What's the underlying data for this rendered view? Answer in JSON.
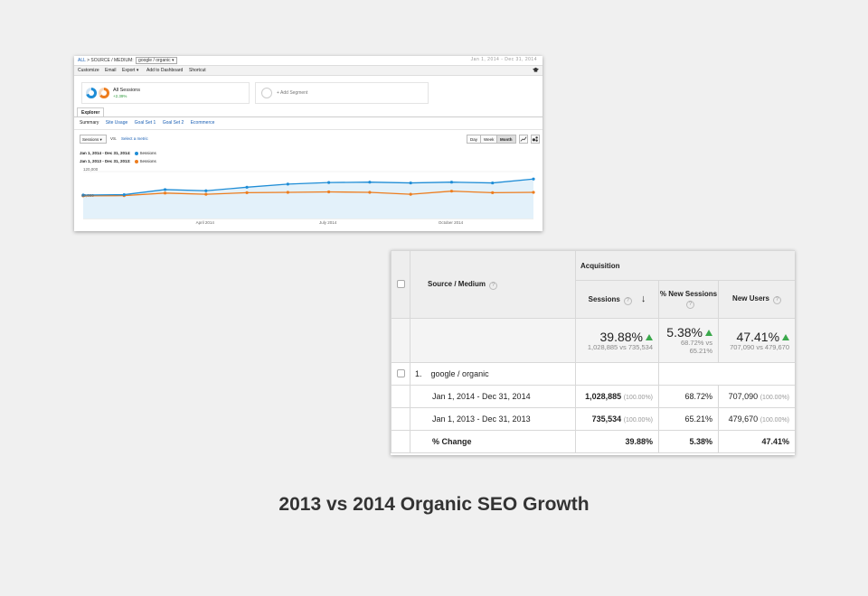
{
  "ga": {
    "crumb_all": "ALL",
    "crumb_sep": ">",
    "crumb_dim": "SOURCE / MEDIUM:",
    "crumb_value": "google / organic",
    "date_range": "Jan 1, 2014 - Dec 31, 2014",
    "toolbar": [
      "Customize",
      "Email",
      "Export ▾",
      "Add to Dashboard",
      "Shortcut"
    ],
    "segment_label": "All Sessions",
    "segment_change": "+2.39%",
    "add_segment": "+ Add Segment",
    "explorer_tab": "Explorer",
    "subtabs": [
      "Summary",
      "Site Usage",
      "Goal Set 1",
      "Goal Set 2",
      "Ecommerce"
    ],
    "metric_select": "Sessions",
    "vs_label": "VS.",
    "select_metric": "Select a metric",
    "period_buttons": [
      "Day",
      "Week",
      "Month"
    ],
    "legend": [
      {
        "period": "Jan 1, 2014 - Dec 31, 2014:",
        "series": "Sessions",
        "color": "#1f8dd6"
      },
      {
        "period": "Jan 1, 2013 - Dec 31, 2013:",
        "series": "Sessions",
        "color": "#ed7d1e"
      }
    ],
    "icons": [
      "graduation-cap-icon",
      "line-chart-icon",
      "motion-chart-icon"
    ]
  },
  "chart_data": {
    "type": "line",
    "y_label_top": "120,000",
    "y_label_mid": "60,000",
    "x_ticks": [
      "April 2014",
      "July 2014",
      "October 2014"
    ],
    "ylim": [
      0,
      120000
    ],
    "series": [
      {
        "name": "Sessions",
        "color": "#1f8dd6",
        "values": [
          60000,
          61000,
          74000,
          71000,
          80000,
          88000,
          92000,
          93000,
          91000,
          93000,
          91000,
          101000
        ]
      },
      {
        "name": "Sessions",
        "color": "#ed7d1e",
        "values": [
          58000,
          58500,
          65000,
          62000,
          66000,
          67000,
          68000,
          67000,
          62000,
          70000,
          66000,
          67000
        ]
      }
    ]
  },
  "table": {
    "acquisition": "Acquisition",
    "source_medium": "Source / Medium",
    "cols": [
      "Sessions",
      "% New Sessions",
      "New Users"
    ],
    "summary": [
      {
        "pct": "39.88%",
        "detail": "1,028,885 vs 735,534"
      },
      {
        "pct": "5.38%",
        "detail": "68.72% vs 65.21%"
      },
      {
        "pct": "47.41%",
        "detail": "707,090 vs 479,670"
      }
    ],
    "row_index": "1.",
    "row_name": "google / organic",
    "rows": [
      {
        "label": "Jan 1, 2014 - Dec 31, 2014",
        "sessions": "1,028,885",
        "sessions_pct": "(100.00%)",
        "new_sessions": "68.72%",
        "new_users": "707,090",
        "new_users_pct": "(100.00%)"
      },
      {
        "label": "Jan 1, 2013 - Dec 31, 2013",
        "sessions": "735,534",
        "sessions_pct": "(100.00%)",
        "new_sessions": "65.21%",
        "new_users": "479,670",
        "new_users_pct": "(100.00%)"
      }
    ],
    "change_label": "% Change",
    "change": [
      "39.88%",
      "5.38%",
      "47.41%"
    ]
  },
  "caption": "2013 vs 2014 Organic SEO Growth"
}
